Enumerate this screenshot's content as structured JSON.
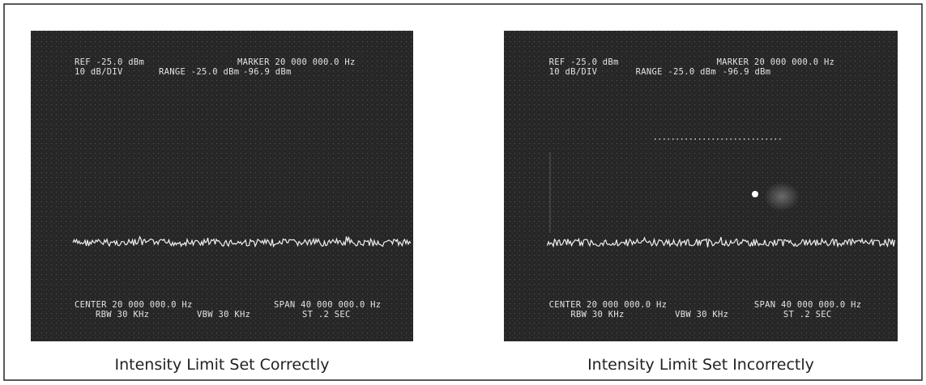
{
  "panels": [
    {
      "screen": {
        "ref": "REF -25.0 dBm",
        "marker": "MARKER 20 000 000.0 Hz",
        "scale": "10 dB/DIV",
        "range": "RANGE -25.0 dBm",
        "marker_level": "-96.9 dBm",
        "center": "CENTER 20 000 000.0 Hz",
        "span": "SPAN 40 000 000.0 Hz",
        "rbw": "RBW 30 KHz",
        "vbw": "VBW 30 KHz",
        "sweep": "ST .2 SEC"
      },
      "caption": "Intensity Limit Set Correctly"
    },
    {
      "screen": {
        "ref": "REF -25.0 dBm",
        "marker": "MARKER 20 000 000.0 Hz",
        "scale": "10 dB/DIV",
        "range": "RANGE -25.0 dBm",
        "marker_level": "-96.9 dBm",
        "center": "CENTER 20 000 000.0 Hz",
        "span": "SPAN 40 000 000.0 Hz",
        "rbw": "RBW 30 KHz",
        "vbw": "VBW 30 KHz",
        "sweep": "ST .2 SEC"
      },
      "caption": "Intensity Limit Set Incorrectly"
    }
  ]
}
